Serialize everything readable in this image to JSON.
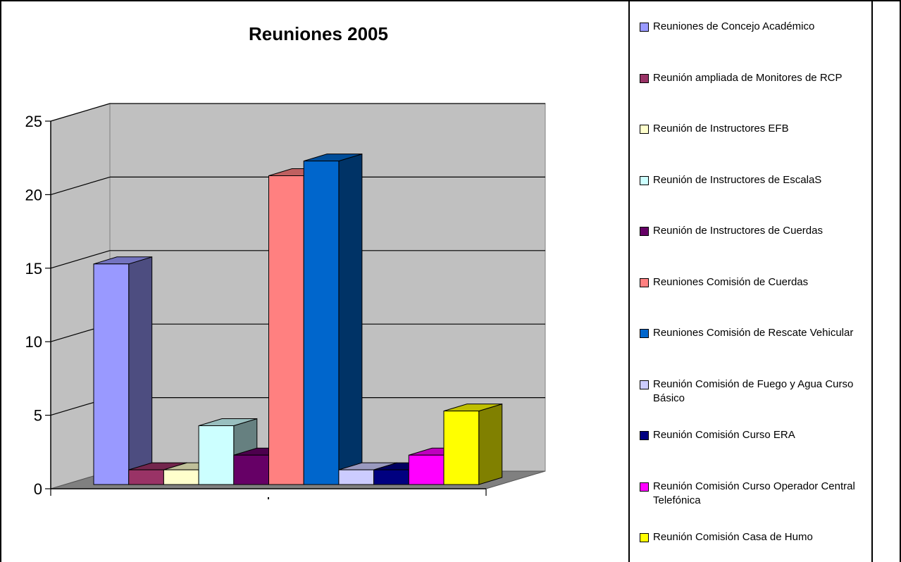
{
  "chart_data": {
    "type": "bar",
    "title": "Reuniones 2005",
    "xlabel": "",
    "ylabel": "",
    "ylim": [
      0,
      25
    ],
    "yticks": [
      0,
      5,
      10,
      15,
      20,
      25
    ],
    "grid": true,
    "legend_position": "right",
    "categories": [
      ""
    ],
    "series": [
      {
        "name": "Reuniones de Concejo Académico",
        "values": [
          15
        ],
        "color": "#9999ff"
      },
      {
        "name": "Reunión ampliada de Monitores de RCP",
        "values": [
          1
        ],
        "color": "#993366"
      },
      {
        "name": "Reunión de Instructores EFB",
        "values": [
          1
        ],
        "color": "#ffffcc"
      },
      {
        "name": "Reunión de Instructores de EscalaS",
        "values": [
          4
        ],
        "color": "#ccffff"
      },
      {
        "name": "Reunión de Instructores de Cuerdas",
        "values": [
          2
        ],
        "color": "#660066"
      },
      {
        "name": "Reuniones Comisión de Cuerdas",
        "values": [
          21
        ],
        "color": "#ff8080"
      },
      {
        "name": "Reuniones Comisión de Rescate Vehicular",
        "values": [
          22
        ],
        "color": "#0066cc"
      },
      {
        "name": "Reunión Comisión de Fuego y Agua Curso Básico",
        "values": [
          1
        ],
        "color": "#ccccff"
      },
      {
        "name": "Reunión Comisión Curso ERA",
        "values": [
          1
        ],
        "color": "#000080"
      },
      {
        "name": "Reunión Comisión Curso Operador Central Telefónica",
        "values": [
          2
        ],
        "color": "#ff00ff"
      },
      {
        "name": "Reunión Comisión Casa de Humo",
        "values": [
          5
        ],
        "color": "#ffff00"
      }
    ]
  }
}
